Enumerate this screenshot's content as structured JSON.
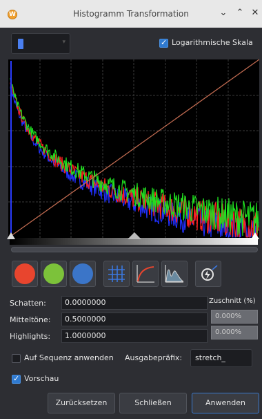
{
  "window": {
    "title": "Histogramm Transformation",
    "logo_glyph": "W",
    "controls": [
      "minimize-icon",
      "maximize-icon",
      "close-icon"
    ]
  },
  "toolbar": {
    "log_scale_label": "Logarithmische Skala",
    "log_scale_checked": true
  },
  "histogram": {
    "type": "line",
    "x": "pixel intensity 0–1",
    "y": "log count",
    "series_colors": {
      "red": "#ff2020",
      "green": "#20e020",
      "blue": "#2030ff"
    },
    "transfer_curve_color": "#c06a50"
  },
  "buttons_row": {
    "channels": [
      {
        "name": "red-channel-button",
        "color": "#e8452e"
      },
      {
        "name": "green-channel-button",
        "color": "#7cc23a"
      },
      {
        "name": "blue-channel-button",
        "color": "#3b75c8"
      }
    ],
    "tools": [
      "grid-icon",
      "curve-icon",
      "histogram-icon",
      "auto-stretch-icon"
    ]
  },
  "params": {
    "shadows_label": "Schatten:",
    "shadows_value": "0.0000000",
    "midtones_label": "Mitteltöne:",
    "midtones_value": "0.5000000",
    "highlights_label": "Highlights:",
    "highlights_value": "1.0000000",
    "clipping_header": "Zuschnitt (%)",
    "clip_low": "0.000%",
    "clip_high": "0.000%"
  },
  "sequence": {
    "apply_label": "Auf Sequenz anwenden",
    "apply_checked": false,
    "prefix_label": "Ausgabepräfix:",
    "prefix_value": "stretch_"
  },
  "preview": {
    "label": "Vorschau",
    "checked": true
  },
  "footer": {
    "reset_label": "Zurücksetzen",
    "close_label": "Schließen",
    "apply_label": "Anwenden"
  }
}
